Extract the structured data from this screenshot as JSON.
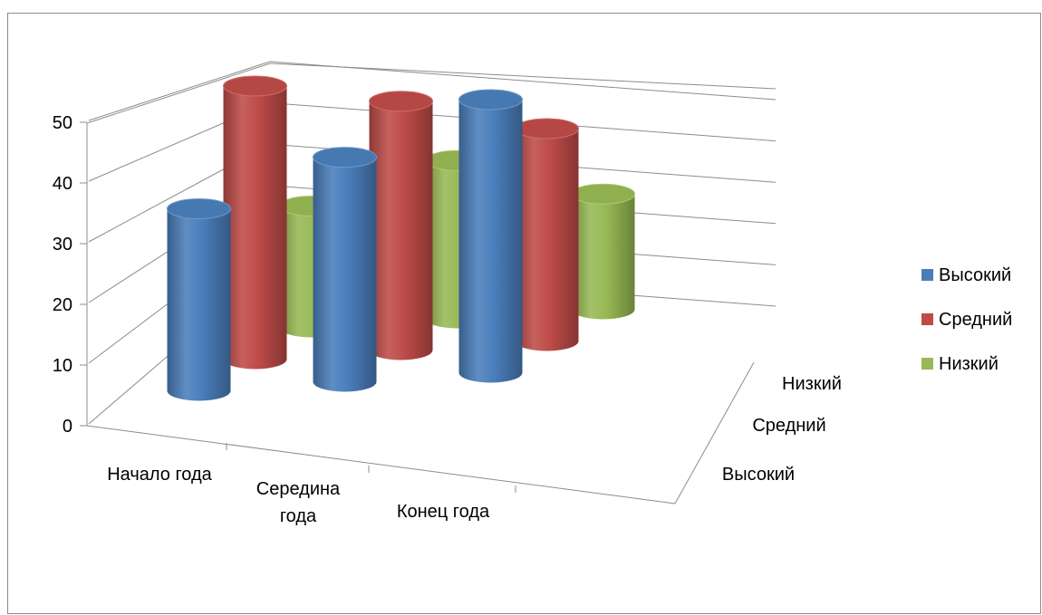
{
  "chart_data": {
    "type": "bar",
    "subtype": "3d-cylinder",
    "title": "",
    "categories": [
      "Начало года",
      "Середина года",
      "Конец года"
    ],
    "category_label_lines": [
      [
        "Начало года"
      ],
      [
        "Середина",
        "года"
      ],
      [
        "Конец года"
      ]
    ],
    "depth_categories": [
      "Высокий",
      "Средний",
      "Низкий"
    ],
    "series": [
      {
        "name": "Высокий",
        "color": "#4a7ebb",
        "values": [
          30,
          37,
          45
        ]
      },
      {
        "name": "Средний",
        "color": "#be4b48",
        "values": [
          45,
          41,
          35
        ]
      },
      {
        "name": "Низкий",
        "color": "#98b954",
        "values": [
          20,
          26,
          19
        ]
      }
    ],
    "y_ticks": [
      "0",
      "10",
      "20",
      "30",
      "40",
      "50"
    ],
    "ylim": [
      0,
      50
    ],
    "grid": true,
    "legend_position": "right"
  }
}
